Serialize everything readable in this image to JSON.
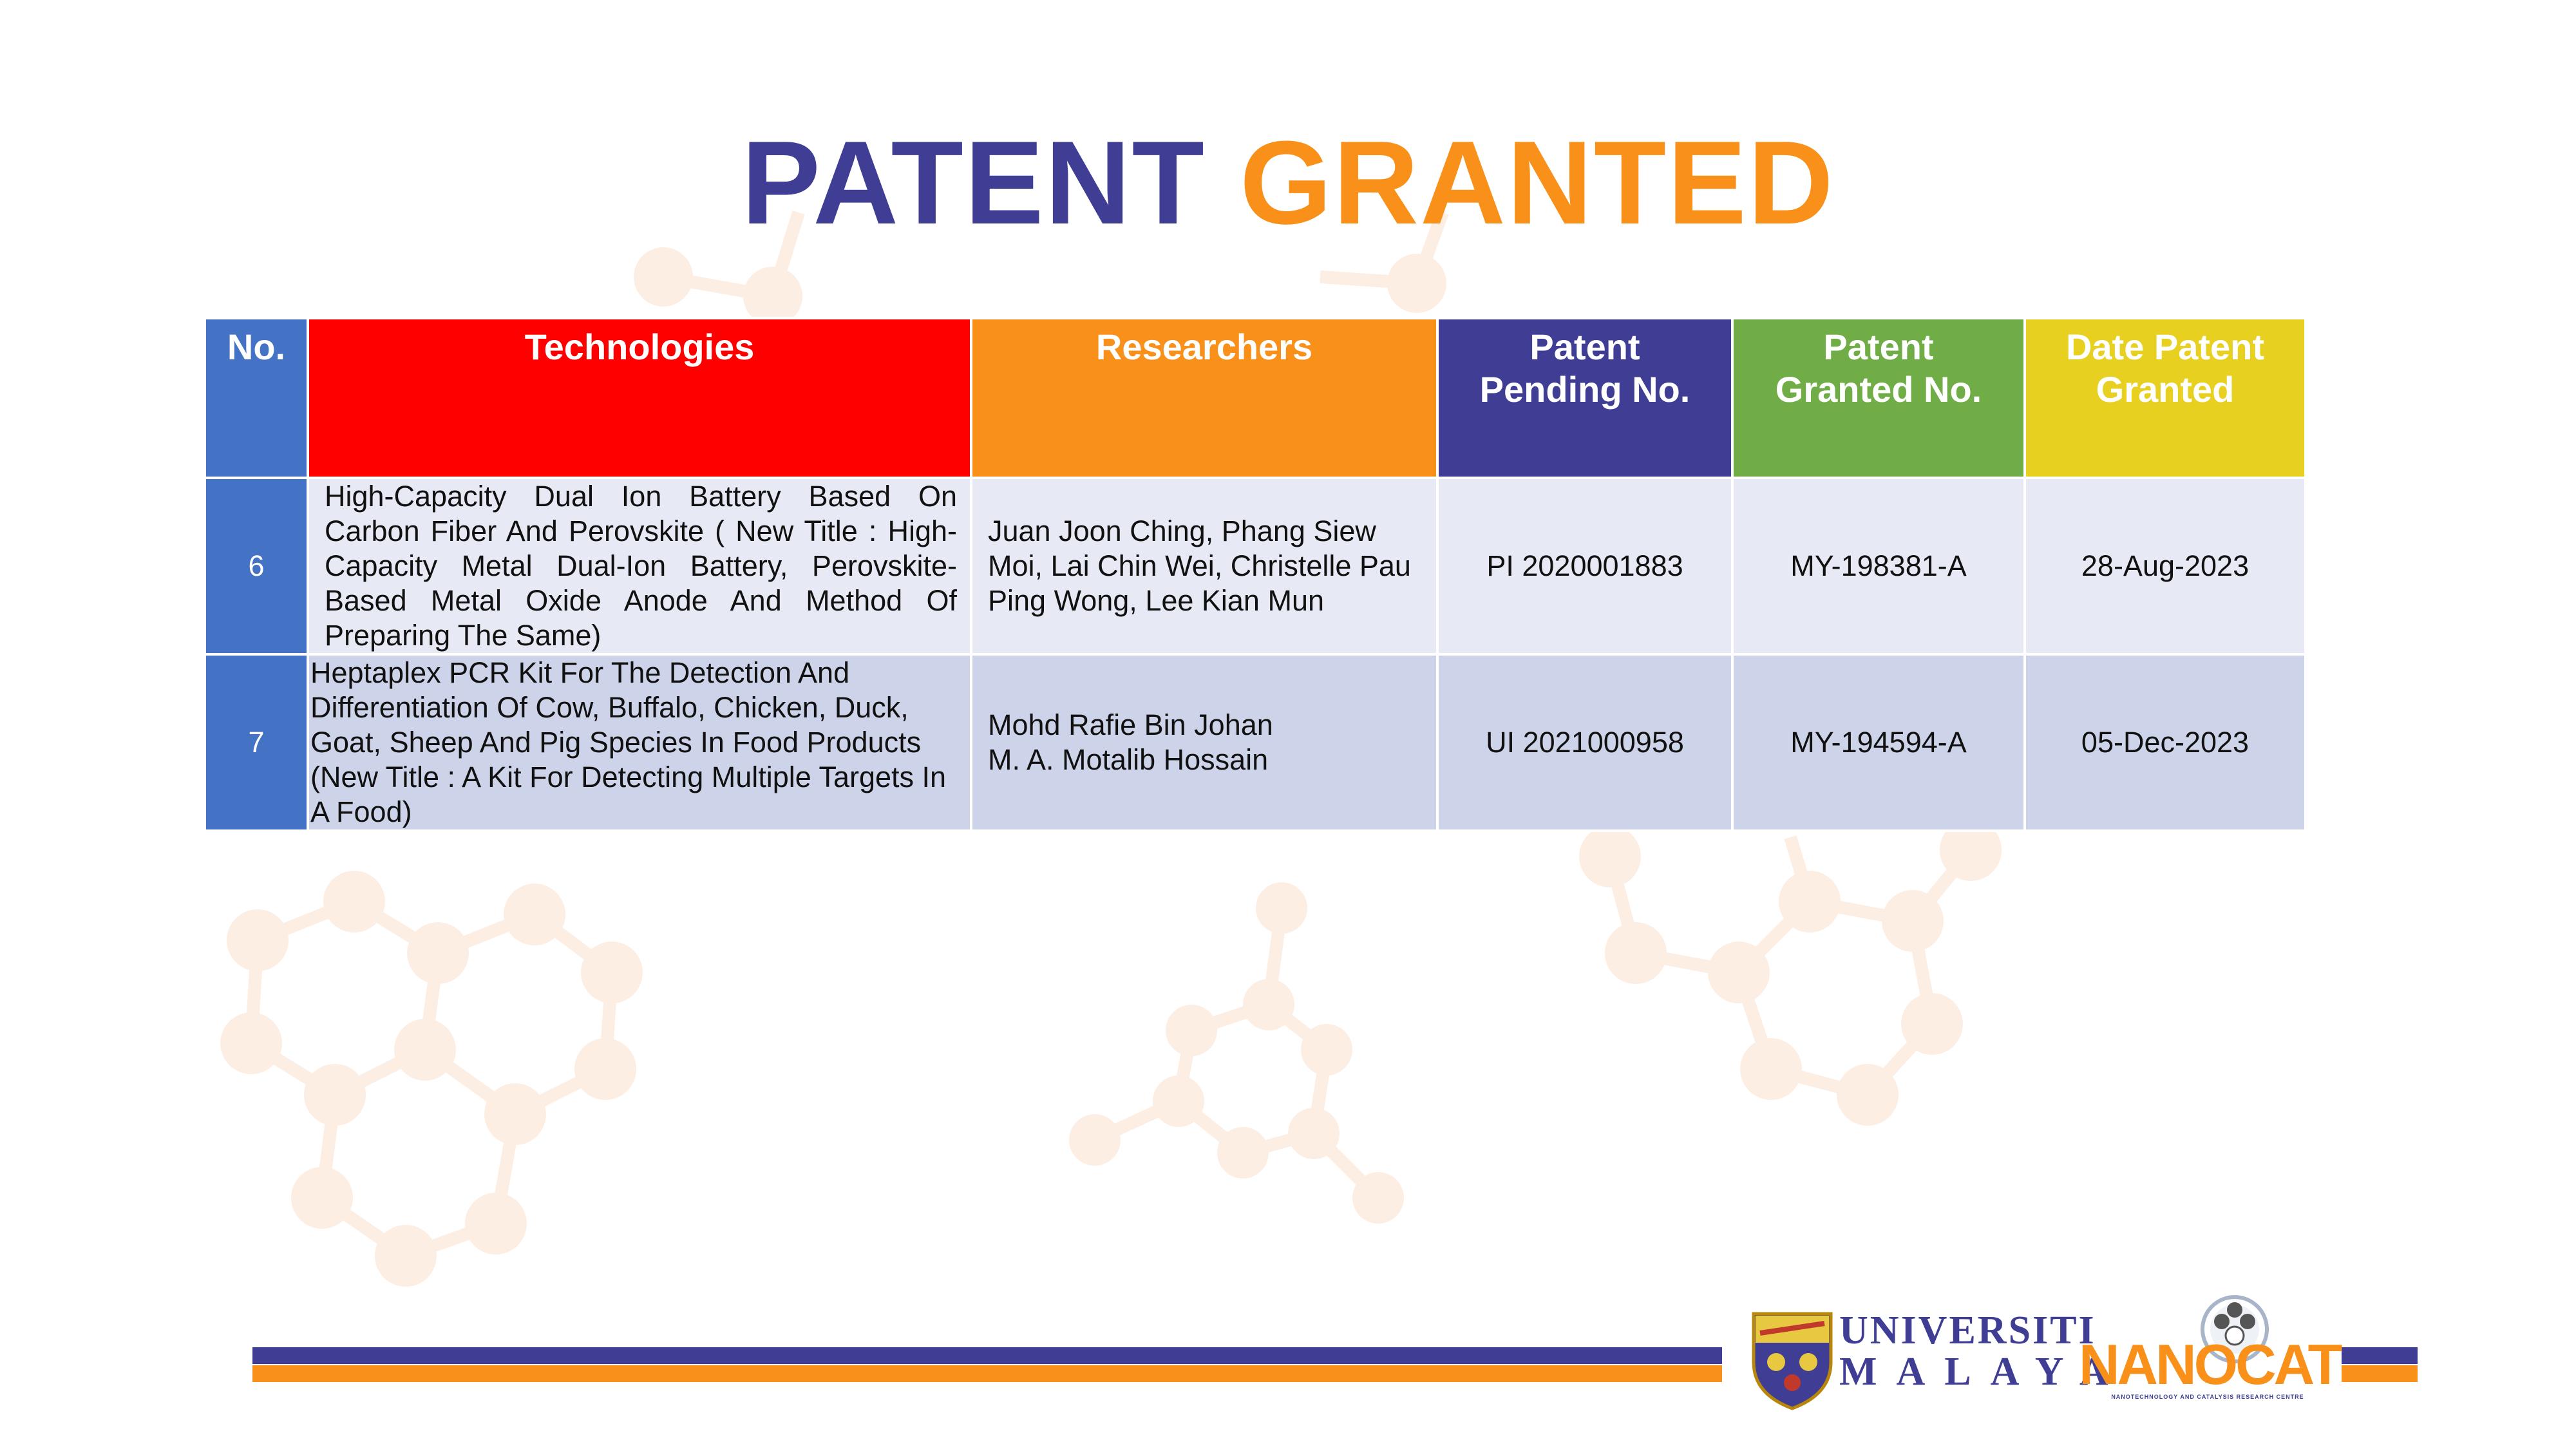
{
  "title": {
    "word1": "PATENT",
    "word2": "GRANTED"
  },
  "table": {
    "headers": {
      "no": "No.",
      "technologies": "Technologies",
      "researchers": "Researchers",
      "pending": [
        "Patent",
        "Pending No."
      ],
      "granted": [
        "Patent",
        "Granted No."
      ],
      "date": [
        "Date Patent",
        "Granted"
      ]
    },
    "rows": [
      {
        "no": "6",
        "technology": "High-Capacity Dual Ion Battery Based On Carbon Fiber And Perovskite ( New Title : High-Capacity Metal Dual-Ion Battery, Perovskite-Based Metal Oxide Anode And Method Of Preparing The Same)",
        "researchers": [
          "Juan Joon Ching, Phang Siew Moi, Lai Chin Wei, Christelle Pau Ping Wong, Lee Kian Mun"
        ],
        "pending_no": "PI 2020001883",
        "granted_no": "MY-198381-A",
        "date": "28-Aug-2023"
      },
      {
        "no": "7",
        "technology": "Heptaplex PCR Kit For The Detection And Differentiation Of Cow, Buffalo, Chicken, Duck, Goat, Sheep And Pig Species In Food Products (New Title : A Kit For Detecting Multiple Targets In A Food)",
        "researchers": [
          "Mohd Rafie Bin Johan",
          "M. A. Motalib Hossain"
        ],
        "pending_no": "UI 2021000958",
        "granted_no": "MY-194594-A",
        "date": "05-Dec-2023"
      }
    ]
  },
  "logos": {
    "university_line1": "UNIVERSITI",
    "university_line2": "MALAYA",
    "nanocat": "NANOCAT",
    "nanocat_tagline": "NANOTECHNOLOGY AND CATALYSIS RESEARCH CENTRE"
  },
  "colors": {
    "purple": "#3F3E94",
    "orange": "#F8901A",
    "blue": "#4472C4",
    "red": "#FF0000",
    "green": "#70AD47",
    "yellow": "#E8D020",
    "row_light": "#E7EAF4",
    "row_dark": "#CDD3E8"
  }
}
